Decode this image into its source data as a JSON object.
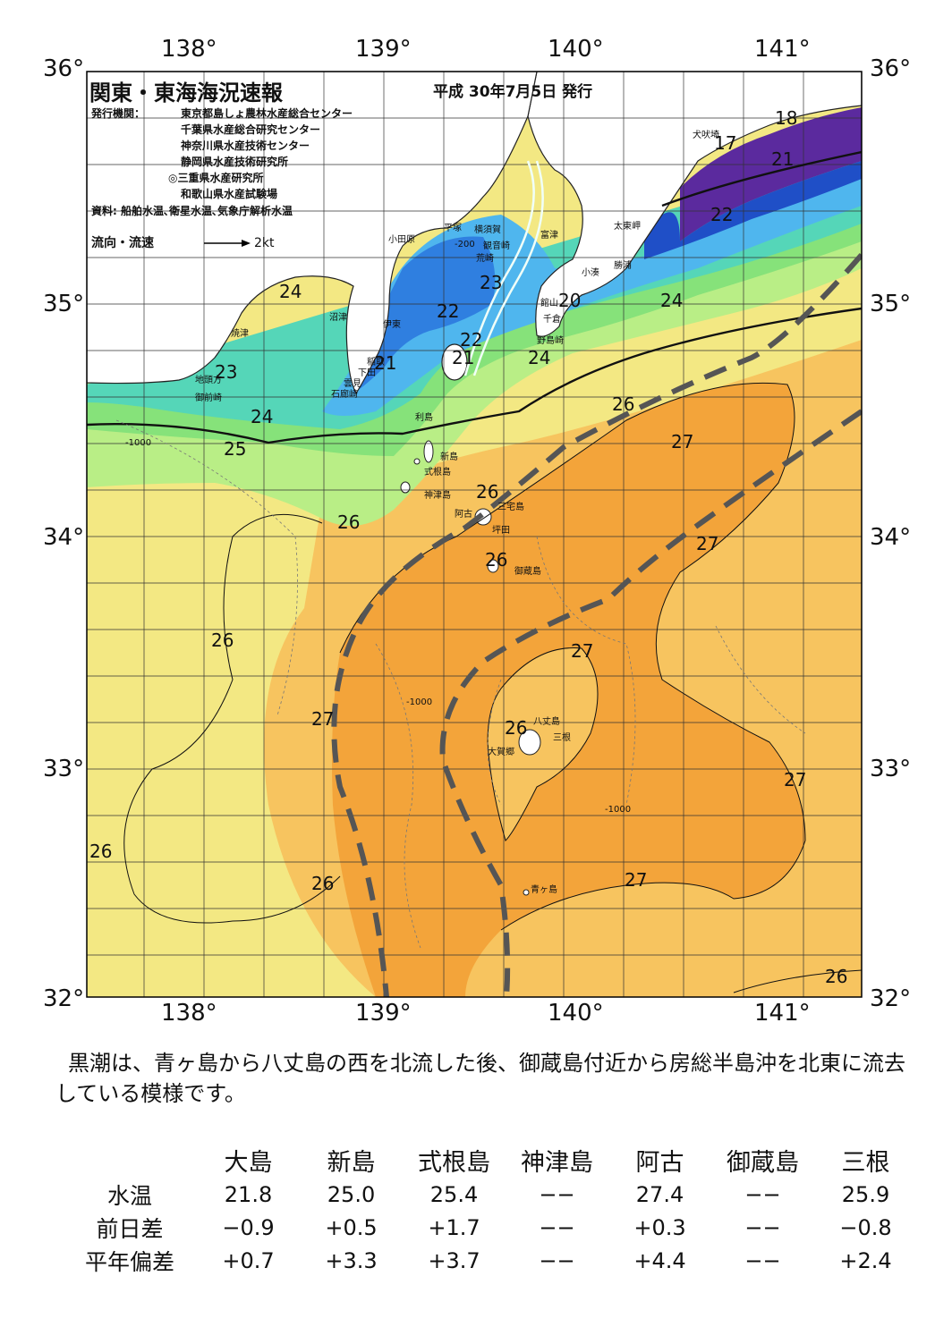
{
  "header": {
    "title": "関東・東海海況速報",
    "issued": "平成 30年7月5日 発行"
  },
  "publishers": {
    "label": "発行機関：",
    "list": [
      "東京都島しょ農林水産総合センター",
      "千葉県水産総合研究センター",
      "神奈川県水産技術センター",
      "静岡県水産技術研究所",
      "◎三重県水産研究所",
      "和歌山県水産試験場"
    ]
  },
  "data_sources": "資料: 船舶水温､衛星水温､気象庁解析水温",
  "flow_legend": {
    "label": "流向・流速",
    "speed": "2kt"
  },
  "axes": {
    "lon_ticks": [
      "138°",
      "139°",
      "140°",
      "141°"
    ],
    "lat_ticks": [
      "36°",
      "35°",
      "34°",
      "33°",
      "32°"
    ]
  },
  "place_names": [
    "犬吠埼",
    "太東岬",
    "勝浦",
    "小湊",
    "富津",
    "観音崎",
    "横須賀",
    "平塚",
    "小田原",
    "荒崎",
    "館山",
    "千倉",
    "野島崎",
    "沼津",
    "焼津",
    "伊東",
    "稲取",
    "下田",
    "雲見",
    "石廊崎",
    "地頭方",
    "御前崎",
    "利島",
    "新島",
    "式根島",
    "神津島",
    "三宅島",
    "阿古",
    "坪田",
    "御蔵島",
    "八丈島",
    "三根",
    "大賀郷",
    "青ヶ島"
  ],
  "isotherm_labels": [
    "18",
    "17",
    "21",
    "22",
    "24",
    "24",
    "23",
    "22",
    "21",
    "20",
    "23",
    "24",
    "22",
    "21",
    "24",
    "25",
    "26",
    "26",
    "27",
    "26",
    "26",
    "27",
    "26",
    "27",
    "26",
    "27",
    "27",
    "26",
    "26",
    "27",
    "26"
  ],
  "depth_labels": [
    "-200",
    "-1000"
  ],
  "colors": {
    "purple": "#5b2a9e",
    "blue_deep": "#1f4fc7",
    "blue": "#2f7fe0",
    "cyan": "#4fb6ee",
    "teal": "#55d6b8",
    "green": "#86e27a",
    "light_green": "#b9ee86",
    "yellow": "#f3e883",
    "light_orange": "#f7c45f",
    "orange": "#f3a43a",
    "kuroshio_axis": "#555555"
  },
  "summary": "黒潮は、青ヶ島から八丈島の西を北流した後、御蔵島付近から房総半島沖を北東に流去している模様です。",
  "stats": {
    "columns": [
      "大島",
      "新島",
      "式根島",
      "神津島",
      "阿古",
      "御蔵島",
      "三根"
    ],
    "rows": [
      {
        "label": "水温",
        "values": [
          "21.8",
          "25.0",
          "25.4",
          "−−",
          "27.4",
          "−−",
          "25.9"
        ]
      },
      {
        "label": "前日差",
        "values": [
          "−0.9",
          "+0.5",
          "+1.7",
          "−−",
          "+0.3",
          "−−",
          "−0.8"
        ]
      },
      {
        "label": "平年偏差",
        "values": [
          "+0.7",
          "+3.3",
          "+3.7",
          "−−",
          "+4.4",
          "−−",
          "+2.4"
        ]
      }
    ]
  }
}
